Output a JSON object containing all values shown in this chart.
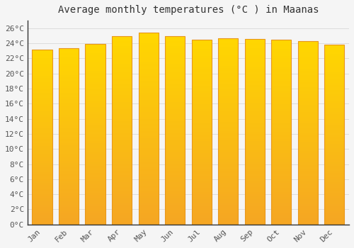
{
  "title": "Average monthly temperatures (°C ) in Maanas",
  "months": [
    "Jan",
    "Feb",
    "Mar",
    "Apr",
    "May",
    "Jun",
    "Jul",
    "Aug",
    "Sep",
    "Oct",
    "Nov",
    "Dec"
  ],
  "values": [
    23.2,
    23.3,
    23.9,
    24.9,
    25.4,
    24.9,
    24.5,
    24.7,
    24.6,
    24.5,
    24.3,
    23.8
  ],
  "bar_color_bottom": "#F5A623",
  "bar_color_top": "#FFD700",
  "bar_edge_color": "#E8971E",
  "background_color": "#F5F5F5",
  "grid_color": "#DDDDDD",
  "ylim": [
    0,
    27
  ],
  "ytick_step": 2,
  "title_fontsize": 10,
  "tick_fontsize": 8,
  "bar_width": 0.75
}
